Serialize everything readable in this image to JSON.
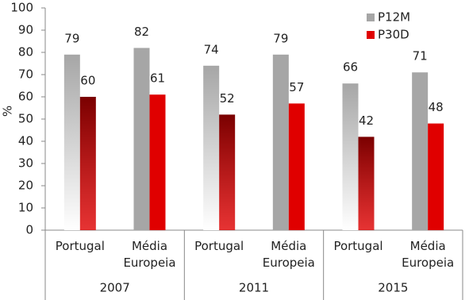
{
  "chart_data": {
    "type": "bar",
    "y_label": "%",
    "groups": [
      "2007",
      "2011",
      "2015"
    ],
    "categories": [
      "Portugal",
      "Média Europeia",
      "Portugal",
      "Média Europeia",
      "Portugal",
      "Média Europeia"
    ],
    "series": [
      {
        "name": "P12M",
        "color": "#a6a6a6",
        "values": [
          79,
          82,
          74,
          79,
          66,
          71
        ]
      },
      {
        "name": "P30D",
        "color": "#e00000",
        "values": [
          60,
          61,
          52,
          57,
          42,
          48
        ]
      }
    ],
    "ylim": [
      0,
      100
    ],
    "yticks": [
      0,
      10,
      20,
      30,
      40,
      50,
      60,
      70,
      80,
      90,
      100
    ],
    "legend": "top-right"
  }
}
